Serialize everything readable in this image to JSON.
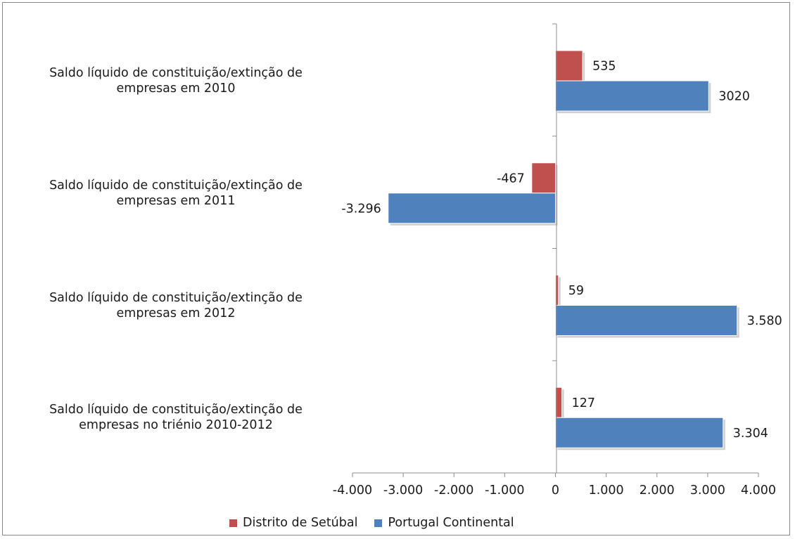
{
  "chart_data": {
    "type": "bar",
    "orientation": "horizontal",
    "categories": [
      [
        "Saldo líquido de constituição/extinção de",
        "empresas em 2010"
      ],
      [
        "Saldo líquido de constituição/extinção de",
        "empresas em 2011"
      ],
      [
        "Saldo líquido de constituição/extinção de",
        "empresas em 2012"
      ],
      [
        "Saldo líquido de constituição/extinção de",
        "empresas no triénio 2010-2012"
      ]
    ],
    "series": [
      {
        "name": "Distrito de Setúbal",
        "color": "#c0504d",
        "values": [
          535,
          -467,
          59,
          127
        ],
        "labels": [
          "535",
          "-467",
          "59",
          "127"
        ]
      },
      {
        "name": "Portugal Continental",
        "color": "#4f81bd",
        "values": [
          3020,
          -3296,
          3580,
          3304
        ],
        "labels": [
          "3020",
          "-3.296",
          "3.580",
          "3.304"
        ]
      }
    ],
    "xlim": [
      -4000,
      4000
    ],
    "xticks": [
      -4000,
      -3000,
      -2000,
      -1000,
      0,
      1000,
      2000,
      3000,
      4000
    ],
    "xtick_labels": [
      "-4.000",
      "-3.000",
      "-2.000",
      "-1.000",
      "0",
      "1.000",
      "2.000",
      "3.000",
      "4.000"
    ],
    "grid": false,
    "legend_position": "bottom"
  }
}
